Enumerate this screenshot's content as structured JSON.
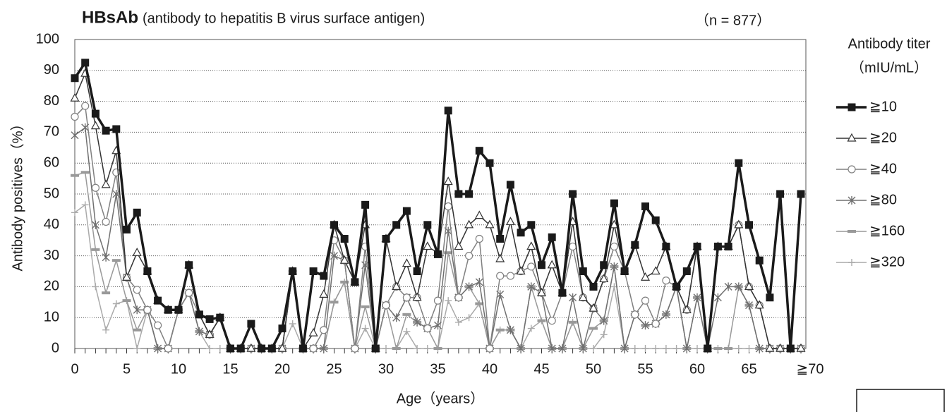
{
  "chart_data": {
    "type": "line",
    "title": "HBsAb",
    "subtitle": "(antibody to hepatitis B virus surface antigen)",
    "annotation": "（n = 877）",
    "x_label": "Age（years）",
    "y_label": "Antibody positives（%）",
    "legend_title": "Antibody titer",
    "legend_subtitle": "（mIU/mL）",
    "categories": [
      "0",
      null,
      null,
      null,
      null,
      "5",
      null,
      null,
      null,
      null,
      "10",
      null,
      null,
      null,
      null,
      "15",
      null,
      null,
      null,
      null,
      "20",
      null,
      null,
      null,
      null,
      "25",
      null,
      null,
      null,
      null,
      "30",
      null,
      null,
      null,
      null,
      "35",
      null,
      null,
      null,
      null,
      "40",
      null,
      null,
      null,
      null,
      "45",
      null,
      null,
      null,
      null,
      "50",
      null,
      null,
      null,
      null,
      "55",
      null,
      null,
      null,
      null,
      "60",
      null,
      null,
      null,
      null,
      "65",
      null,
      null,
      null,
      null,
      "≧70"
    ],
    "ylim": [
      0,
      100
    ],
    "yticks": [
      0,
      10,
      20,
      30,
      40,
      50,
      60,
      70,
      80,
      90,
      100
    ],
    "grid": true,
    "series": [
      {
        "name": "≧10",
        "color": "#1a1a1a",
        "marker": "square",
        "values": [
          87.5,
          92.5,
          76,
          70.5,
          71,
          38.5,
          44,
          25,
          15.5,
          12.5,
          12.5,
          27,
          11,
          9.5,
          10,
          0,
          0,
          8,
          0,
          0,
          6.5,
          25,
          0,
          25,
          23.5,
          40,
          35.5,
          21.5,
          46.5,
          0,
          35.5,
          40,
          44.5,
          25,
          40,
          30.5,
          77,
          50,
          50,
          64,
          60,
          35.5,
          53,
          37.5,
          40,
          27,
          36,
          18,
          50,
          25,
          20,
          27,
          47,
          25,
          33.5,
          46,
          41.5,
          33,
          20,
          25,
          33,
          0,
          33,
          33,
          60,
          40,
          28.5,
          16.5,
          50,
          0,
          50
        ]
      },
      {
        "name": "≧20",
        "color": "#333333",
        "marker": "triangle",
        "values": [
          81,
          89,
          72,
          53,
          64,
          23,
          31,
          25,
          15.5,
          12.5,
          12.5,
          27,
          11,
          4.5,
          10,
          0,
          0,
          0,
          0,
          0,
          0,
          25,
          0,
          5,
          17.5,
          40,
          28.5,
          21.5,
          40,
          0,
          35.5,
          20,
          27.5,
          16.5,
          33,
          31,
          54,
          33,
          40,
          43,
          40,
          29,
          41,
          25,
          33,
          18,
          27,
          18,
          41,
          16.5,
          13,
          22.5,
          40,
          25,
          33.5,
          23,
          25,
          33,
          20,
          12.5,
          33,
          0,
          33,
          33,
          40,
          20,
          14,
          0,
          0,
          0,
          0
        ]
      },
      {
        "name": "≧40",
        "color": "#808080",
        "marker": "circle",
        "values": [
          75,
          78.5,
          52,
          41,
          57,
          23,
          19,
          12.5,
          7.5,
          0,
          12.5,
          18,
          11,
          4.5,
          10,
          0,
          0,
          0,
          0,
          0,
          0,
          25,
          0,
          0,
          6,
          35,
          28.5,
          0,
          33,
          0,
          14,
          20,
          16.5,
          16.5,
          6.5,
          15.5,
          46,
          16.5,
          30,
          35.5,
          0,
          23.5,
          23.5,
          25,
          26.5,
          18,
          9,
          18,
          33,
          16.5,
          13,
          22.5,
          33,
          25,
          11,
          15.5,
          8,
          22,
          20,
          12.5,
          33,
          0,
          33,
          33,
          40,
          20,
          14,
          0,
          0,
          0,
          0
        ]
      },
      {
        "name": "≧80",
        "color": "#707070",
        "marker": "star",
        "values": [
          69,
          71.5,
          40,
          29.5,
          50,
          23,
          12.5,
          12.5,
          0,
          0,
          12.5,
          18,
          5.5,
          4.5,
          10,
          0,
          0,
          0,
          0,
          0,
          0,
          25,
          0,
          0,
          0,
          30,
          28.5,
          0,
          27,
          0,
          14,
          10,
          16.5,
          8.5,
          6.5,
          7.5,
          38,
          16.5,
          20,
          21.5,
          0,
          17.5,
          6,
          0,
          20,
          18,
          0,
          0,
          16.5,
          0,
          13,
          9,
          26.5,
          0,
          11,
          7.5,
          8,
          11,
          20,
          0,
          16.5,
          0,
          16.5,
          20,
          20,
          14,
          0,
          0,
          0,
          0,
          0
        ]
      },
      {
        "name": "≧160",
        "color": "#999999",
        "marker": "dash",
        "values": [
          56,
          57,
          32,
          18,
          28.5,
          15.5,
          6,
          12.5,
          0,
          0,
          12.5,
          18,
          5.5,
          4.5,
          10,
          0,
          0,
          0,
          0,
          0,
          0,
          25,
          0,
          0,
          0,
          15,
          21.5,
          0,
          13.5,
          0,
          14,
          0,
          11,
          8.5,
          6.5,
          0,
          31,
          16.5,
          20,
          14.5,
          0,
          6,
          6,
          0,
          20,
          9,
          0,
          0,
          8.5,
          0,
          6.5,
          9,
          26.5,
          0,
          11,
          7.5,
          8,
          11,
          20,
          0,
          16.5,
          0,
          0,
          0,
          20,
          14,
          0,
          0,
          0,
          0,
          0
        ]
      },
      {
        "name": "≧320",
        "color": "#aaaaaa",
        "marker": "plus",
        "values": [
          44,
          46.5,
          20,
          6,
          14.5,
          15.5,
          0,
          12.5,
          0,
          0,
          12.5,
          18,
          5.5,
          0,
          0,
          0,
          0,
          0,
          0,
          0,
          0,
          8,
          0,
          0,
          0,
          15,
          21.5,
          0,
          6.5,
          0,
          0,
          0,
          5.5,
          0,
          0,
          0,
          15.5,
          8.5,
          10,
          14.5,
          0,
          6,
          6,
          0,
          6.5,
          9,
          0,
          0,
          8.5,
          0,
          0,
          4.5,
          20,
          0,
          0,
          0,
          0,
          0,
          0,
          0,
          0,
          0,
          0,
          0,
          0,
          0,
          0,
          0,
          0,
          0,
          0
        ]
      }
    ]
  }
}
